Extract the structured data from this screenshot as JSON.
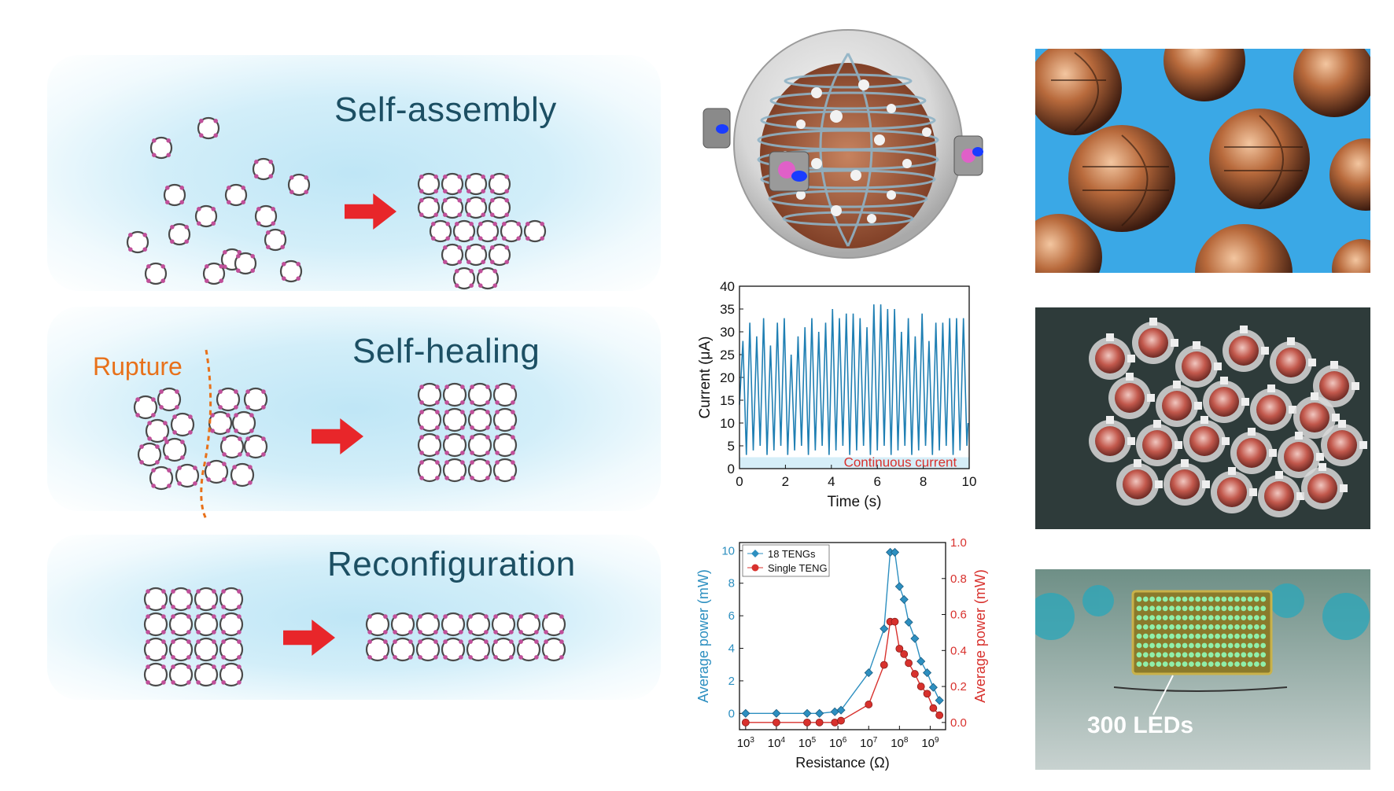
{
  "left": {
    "self_assembly": {
      "title": "Self-assembly"
    },
    "self_healing": {
      "title": "Self-healing",
      "rupture_label": "Rupture"
    },
    "reconfiguration": {
      "title": "Reconfiguration"
    }
  },
  "photos": {
    "leds_label": "300 LEDs"
  },
  "colors": {
    "heading": "#1c4f63",
    "arrow": "#e8262a",
    "rupture": "#e8711a",
    "current_line": "#1f7fb3",
    "teng18": "#2d8fc0",
    "single_teng": "#d8312d"
  },
  "chart_data": [
    {
      "type": "line",
      "xlabel": "Time (s)",
      "ylabel": "Current (μA)",
      "xlim": [
        0,
        10
      ],
      "ylim": [
        0,
        40
      ],
      "x_ticks": [
        "0",
        "2",
        "4",
        "6",
        "8",
        "10"
      ],
      "y_ticks": [
        "0",
        "5",
        "10",
        "15",
        "20",
        "25",
        "30",
        "35",
        "40"
      ],
      "annotation": "Continuous current",
      "series": [
        {
          "x": [
            0.15,
            0.45,
            0.75,
            1.05,
            1.35,
            1.65,
            1.95,
            2.25,
            2.55,
            2.85,
            3.15,
            3.45,
            3.75,
            4.05,
            4.35,
            4.65,
            4.95,
            5.25,
            5.55,
            5.85,
            6.15,
            6.45,
            6.75,
            7.05,
            7.35,
            7.65,
            7.95,
            8.25,
            8.55,
            8.85,
            9.15,
            9.45,
            9.75
          ],
          "peaks": [
            28,
            32,
            29,
            33,
            27,
            32,
            33,
            25,
            29,
            31,
            33,
            30,
            32,
            35,
            33,
            34,
            34,
            33,
            31,
            36,
            36,
            35,
            35,
            30,
            33,
            29,
            34,
            28,
            32,
            32,
            33,
            33,
            33
          ],
          "troughs": [
            3,
            4,
            5,
            3,
            4,
            5,
            3,
            4,
            5,
            3,
            4,
            5,
            3,
            4,
            5,
            3,
            4,
            5,
            3,
            4,
            5,
            3,
            4,
            5,
            3,
            4,
            5,
            3,
            4,
            5,
            3,
            4,
            5
          ]
        }
      ]
    },
    {
      "type": "line",
      "xlabel": "Resistance (Ω)",
      "ylabel": "Average power (mW)",
      "y2label": "Average power (mW)",
      "ylim": [
        -1,
        10.5
      ],
      "y2lim": [
        -0.04,
        1.0
      ],
      "y_ticks": [
        "0",
        "2",
        "4",
        "6",
        "8",
        "10"
      ],
      "y2_ticks": [
        "0.0",
        "0.2",
        "0.4",
        "0.6",
        "0.8",
        "1.0"
      ],
      "x_ticks_exp": [
        "3",
        "4",
        "5",
        "6",
        "7",
        "8",
        "9"
      ],
      "legend": "top-left",
      "series": [
        {
          "name": "18 TENGs",
          "axis": "left",
          "log_r": [
            3,
            4,
            5,
            5.4,
            5.9,
            6.1,
            7,
            7.5,
            7.7,
            7.85,
            8.0,
            8.15,
            8.3,
            8.5,
            8.7,
            8.9,
            9.1,
            9.3
          ],
          "values": [
            0,
            0,
            0,
            0,
            0.1,
            0.2,
            2.5,
            5.2,
            9.9,
            9.9,
            7.8,
            7.0,
            5.6,
            4.6,
            3.2,
            2.5,
            1.6,
            0.8
          ]
        },
        {
          "name": "Single TENG",
          "axis": "right",
          "log_r": [
            3,
            4,
            5,
            5.4,
            5.9,
            6.1,
            7,
            7.5,
            7.7,
            7.85,
            8.0,
            8.15,
            8.3,
            8.5,
            8.7,
            8.9,
            9.1,
            9.3
          ],
          "values": [
            0,
            0,
            0,
            0,
            0.0,
            0.01,
            0.1,
            0.32,
            0.56,
            0.56,
            0.41,
            0.38,
            0.33,
            0.27,
            0.2,
            0.16,
            0.08,
            0.04
          ]
        }
      ]
    }
  ]
}
